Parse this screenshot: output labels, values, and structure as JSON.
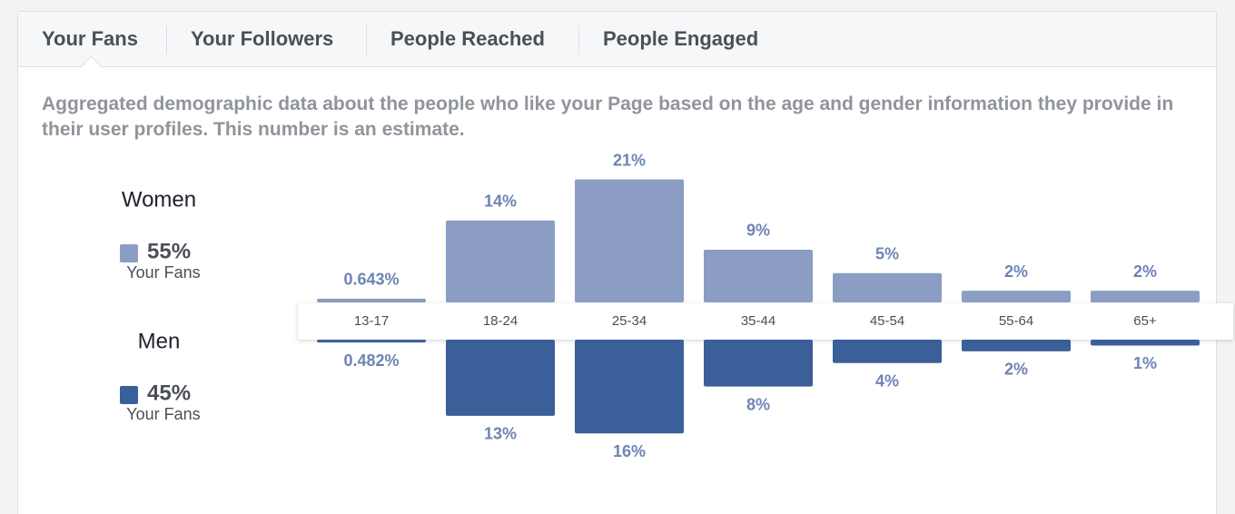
{
  "tabs": [
    "Your Fans",
    "Your Followers",
    "People Reached",
    "People Engaged"
  ],
  "description": "Aggregated demographic data about the people who like your Page based on the age and gender information they provide in their user profiles. This number is an estimate.",
  "chart_data": {
    "type": "butterfly-bar",
    "categories": [
      "13-17",
      "18-24",
      "25-34",
      "35-44",
      "45-54",
      "55-64",
      "65+"
    ],
    "series": [
      {
        "name": "Women",
        "color": "#8b9dc3",
        "share": "55%",
        "caption": "Your Fans",
        "values": [
          0.643,
          14,
          21,
          9,
          5,
          2,
          2
        ],
        "value_labels": [
          "0.643%",
          "14%",
          "21%",
          "9%",
          "5%",
          "2%",
          "2%"
        ]
      },
      {
        "name": "Men",
        "color": "#3b5f99",
        "share": "45%",
        "caption": "Your Fans",
        "values": [
          0.482,
          13,
          16,
          8,
          4,
          2,
          1
        ],
        "value_labels": [
          "0.482%",
          "13%",
          "16%",
          "8%",
          "4%",
          "2%",
          "1%"
        ]
      }
    ]
  }
}
